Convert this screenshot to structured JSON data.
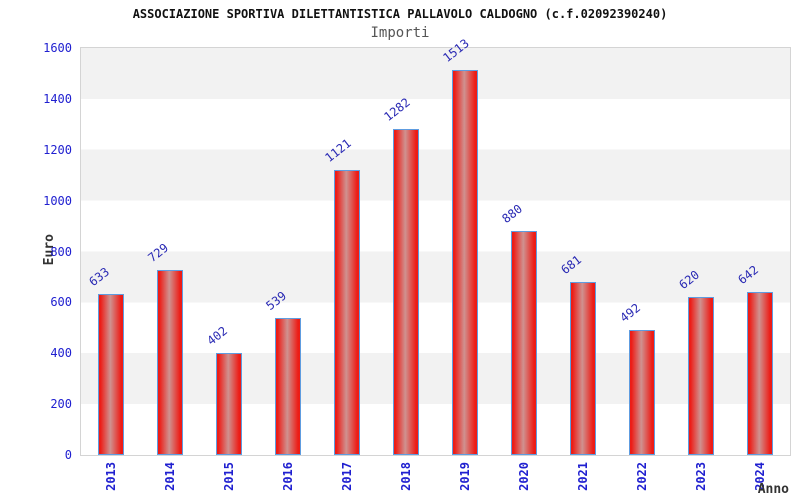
{
  "chart_data": {
    "type": "bar",
    "title": "ASSOCIAZIONE SPORTIVA DILETTANTISTICA PALLAVOLO CALDOGNO (c.f.02092390240)",
    "subtitle": "Importi",
    "categories": [
      "2013",
      "2014",
      "2015",
      "2016",
      "2017",
      "2018",
      "2019",
      "2020",
      "2021",
      "2022",
      "2023",
      "2024"
    ],
    "values": [
      633,
      729,
      402,
      539,
      1121,
      1282,
      1513,
      880,
      681,
      492,
      620,
      642
    ],
    "xlabel": "Anno",
    "ylabel": "Euro",
    "ylim": [
      0,
      1600
    ],
    "ytick_step": 200,
    "yticks": [
      0,
      200,
      400,
      600,
      800,
      1000,
      1200,
      1400,
      1600
    ],
    "legend": false,
    "grid": "alternating-horizontal-bands",
    "value_label_rotation_deg": -38,
    "colors": {
      "title_color": "#111111",
      "subtitle_color": "#555555",
      "axis_text_blue": "#2020d0",
      "value_label_blue": "#2a2ab4",
      "axis_title_color": "#333333",
      "band_gray": "#f2f2f2",
      "plot_border": "#d4d4d4",
      "bar_edge_red": "#ed1c16",
      "bar_center": "#cf9290",
      "bar_border_blue": "#5e9ce0"
    }
  }
}
